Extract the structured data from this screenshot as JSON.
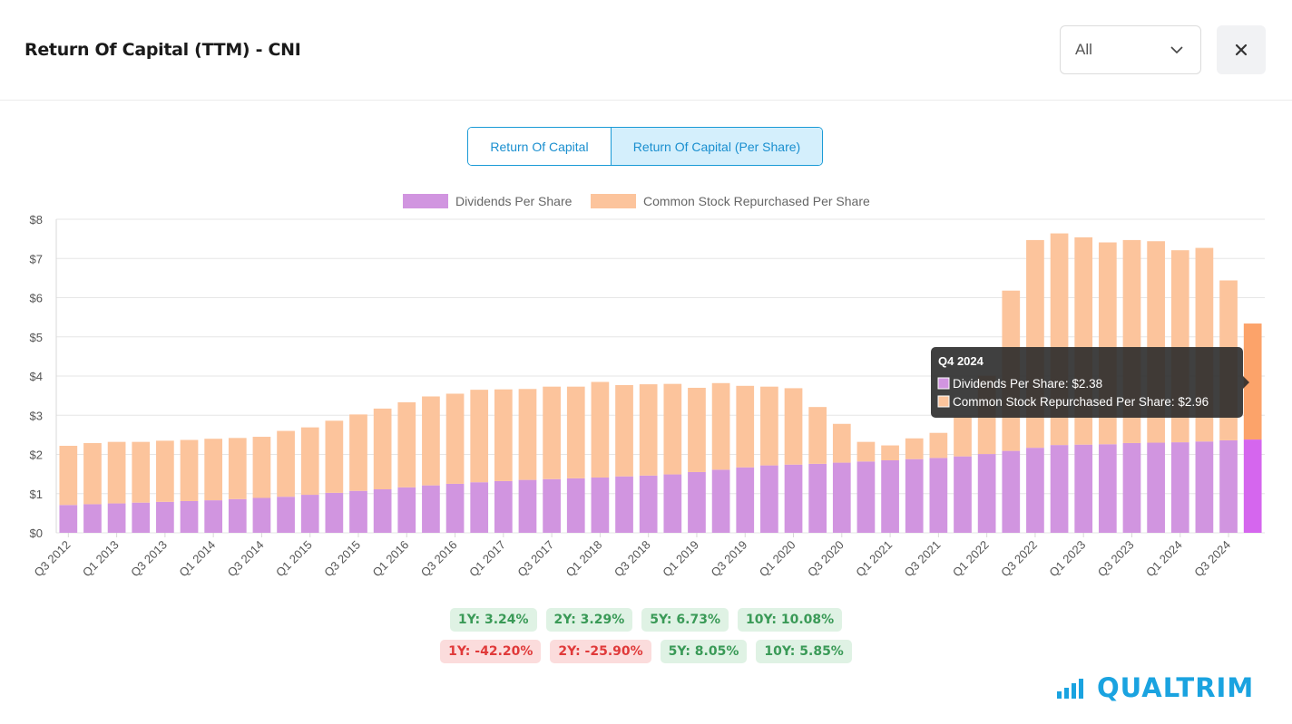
{
  "header": {
    "title": "Return Of Capital (TTM) - CNI",
    "period_select": "All"
  },
  "toggle": {
    "option1": "Return Of Capital",
    "option2": "Return Of Capital (Per Share)"
  },
  "colors": {
    "dividends": "#d195e0",
    "repurchased": "#fcc49c",
    "dividends_active": "#d566ee",
    "repurchased_active": "#fca36a",
    "grid": "#e6e6e6",
    "tooltip_bg": "#2b2b2b"
  },
  "chart_data": {
    "type": "bar",
    "stacked": true,
    "ylim": [
      0,
      8
    ],
    "ytick_labels": [
      "$0",
      "$1",
      "$2",
      "$3",
      "$4",
      "$5",
      "$6",
      "$7",
      "$8"
    ],
    "categories": [
      "Q3 2012",
      "Q4 2012",
      "Q1 2013",
      "Q2 2013",
      "Q3 2013",
      "Q4 2013",
      "Q1 2014",
      "Q2 2014",
      "Q3 2014",
      "Q4 2014",
      "Q1 2015",
      "Q2 2015",
      "Q3 2015",
      "Q4 2015",
      "Q1 2016",
      "Q2 2016",
      "Q3 2016",
      "Q4 2016",
      "Q1 2017",
      "Q2 2017",
      "Q3 2017",
      "Q4 2017",
      "Q1 2018",
      "Q2 2018",
      "Q3 2018",
      "Q4 2018",
      "Q1 2019",
      "Q2 2019",
      "Q3 2019",
      "Q4 2019",
      "Q1 2020",
      "Q2 2020",
      "Q3 2020",
      "Q4 2020",
      "Q1 2021",
      "Q2 2021",
      "Q3 2021",
      "Q4 2021",
      "Q1 2022",
      "Q2 2022",
      "Q3 2022",
      "Q4 2022",
      "Q1 2023",
      "Q2 2023",
      "Q3 2023",
      "Q4 2023",
      "Q1 2024",
      "Q2 2024",
      "Q3 2024",
      "Q4 2024"
    ],
    "xtick_labels": [
      "Q3 2012",
      "Q1 2013",
      "Q3 2013",
      "Q1 2014",
      "Q3 2014",
      "Q1 2015",
      "Q3 2015",
      "Q1 2016",
      "Q3 2016",
      "Q1 2017",
      "Q3 2017",
      "Q1 2018",
      "Q3 2018",
      "Q1 2019",
      "Q3 2019",
      "Q1 2020",
      "Q3 2020",
      "Q1 2021",
      "Q3 2021",
      "Q1 2022",
      "Q3 2022",
      "Q1 2023",
      "Q3 2023",
      "Q1 2024",
      "Q3 2024"
    ],
    "series": [
      {
        "name": "Dividends Per Share",
        "values": [
          0.71,
          0.73,
          0.75,
          0.77,
          0.79,
          0.81,
          0.83,
          0.86,
          0.89,
          0.92,
          0.97,
          1.02,
          1.07,
          1.11,
          1.16,
          1.21,
          1.25,
          1.29,
          1.32,
          1.35,
          1.37,
          1.39,
          1.41,
          1.44,
          1.46,
          1.49,
          1.55,
          1.61,
          1.67,
          1.72,
          1.74,
          1.76,
          1.79,
          1.82,
          1.85,
          1.88,
          1.91,
          1.95,
          2.01,
          2.09,
          2.17,
          2.24,
          2.25,
          2.26,
          2.29,
          2.3,
          2.31,
          2.33,
          2.36,
          2.38
        ]
      },
      {
        "name": "Common Stock Repurchased Per Share",
        "values": [
          1.51,
          1.56,
          1.57,
          1.55,
          1.56,
          1.56,
          1.57,
          1.56,
          1.56,
          1.68,
          1.72,
          1.84,
          1.95,
          2.06,
          2.17,
          2.27,
          2.3,
          2.36,
          2.34,
          2.32,
          2.36,
          2.34,
          2.44,
          2.33,
          2.33,
          2.31,
          2.15,
          2.21,
          2.08,
          2.01,
          1.95,
          1.45,
          0.99,
          0.5,
          0.38,
          0.53,
          0.64,
          1.0,
          2.0,
          4.09,
          5.3,
          5.4,
          5.29,
          5.15,
          5.18,
          5.14,
          4.9,
          4.94,
          4.08,
          2.96
        ]
      }
    ],
    "legend": [
      "Dividends Per Share",
      "Common Stock Repurchased Per Share"
    ],
    "active_index": 49,
    "tooltip": {
      "title": "Q4 2024",
      "line1": "Dividends Per Share: $2.38",
      "line2": "Common Stock Repurchased Per Share: $2.96"
    }
  },
  "growth_badges": {
    "row1": [
      {
        "label": "1Y: 3.24%",
        "status": "pos"
      },
      {
        "label": "2Y: 3.29%",
        "status": "pos"
      },
      {
        "label": "5Y: 6.73%",
        "status": "pos"
      },
      {
        "label": "10Y: 10.08%",
        "status": "pos"
      }
    ],
    "row2": [
      {
        "label": "1Y: -42.20%",
        "status": "neg"
      },
      {
        "label": "2Y: -25.90%",
        "status": "neg"
      },
      {
        "label": "5Y: 8.05%",
        "status": "pos"
      },
      {
        "label": "10Y: 5.85%",
        "status": "pos"
      }
    ]
  },
  "brand": {
    "logo_text": "QUALTRIM",
    "icon": "bar-chart-icon"
  }
}
